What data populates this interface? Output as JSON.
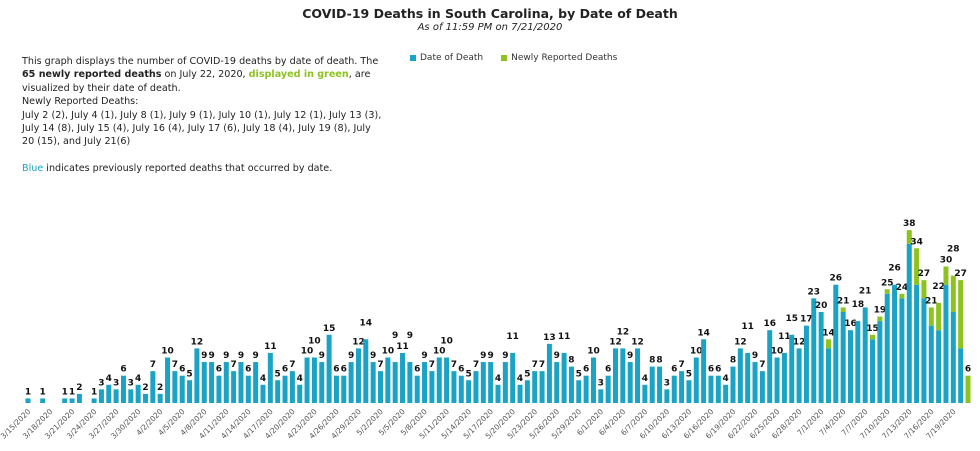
{
  "chart_data": {
    "type": "bar",
    "stacked": true,
    "title": "COVID-19 Deaths in South Carolina, by Date of Death",
    "subtitle": "As of 11:59 PM on 7/21/2020",
    "legend_placement": "top-center",
    "grid": false,
    "tick_every": 3,
    "start_date": "3/15/2020",
    "colors": {
      "date_of_death": "#1aa3c4",
      "newly_reported": "#8dc21f"
    },
    "series": [
      {
        "name": "Date of Death",
        "values": [
          1,
          0,
          1,
          0,
          0,
          1,
          1,
          2,
          0,
          1,
          3,
          4,
          3,
          6,
          3,
          4,
          2,
          7,
          2,
          10,
          7,
          6,
          5,
          12,
          9,
          9,
          6,
          9,
          7,
          9,
          6,
          9,
          4,
          11,
          5,
          6,
          7,
          4,
          10,
          10,
          9,
          15,
          6,
          6,
          9,
          12,
          14,
          9,
          7,
          10,
          9,
          11,
          9,
          6,
          9,
          7,
          10,
          10,
          7,
          6,
          5,
          7,
          9,
          9,
          4,
          9,
          11,
          4,
          5,
          7,
          7,
          13,
          9,
          11,
          8,
          5,
          6,
          10,
          3,
          6,
          12,
          12,
          9,
          12,
          4,
          8,
          8,
          3,
          6,
          7,
          5,
          10,
          14,
          6,
          6,
          4,
          8,
          12,
          11,
          9,
          7,
          16,
          10,
          11,
          15,
          12,
          17,
          23,
          20,
          12,
          26,
          20,
          16,
          18,
          21,
          14,
          18,
          24,
          26,
          23,
          35,
          26,
          23,
          17,
          16,
          26,
          20,
          12,
          0
        ]
      },
      {
        "name": "Newly Reported Deaths",
        "values": [
          0,
          0,
          0,
          0,
          0,
          0,
          0,
          0,
          0,
          0,
          0,
          0,
          0,
          0,
          0,
          0,
          0,
          0,
          0,
          0,
          0,
          0,
          0,
          0,
          0,
          0,
          0,
          0,
          0,
          0,
          0,
          0,
          0,
          0,
          0,
          0,
          0,
          0,
          0,
          0,
          0,
          0,
          0,
          0,
          0,
          0,
          0,
          0,
          0,
          0,
          0,
          0,
          0,
          0,
          0,
          0,
          0,
          0,
          0,
          0,
          0,
          0,
          0,
          0,
          0,
          0,
          0,
          0,
          0,
          0,
          0,
          0,
          0,
          0,
          0,
          0,
          0,
          0,
          0,
          0,
          0,
          0,
          0,
          0,
          0,
          0,
          0,
          0,
          0,
          0,
          0,
          0,
          0,
          0,
          0,
          0,
          0,
          0,
          0,
          0,
          0,
          0,
          0,
          0,
          0,
          0,
          0,
          0,
          0,
          2,
          0,
          1,
          0,
          0,
          0,
          1,
          1,
          1,
          0,
          1,
          3,
          8,
          4,
          4,
          6,
          4,
          8,
          15,
          6
        ]
      }
    ],
    "ylim": [
      0,
      40
    ]
  },
  "description": {
    "line1": "This graph displays the number of COVID-19 deaths by date of death. The",
    "bold": "65 newly reported deaths",
    "mid": " on July 22, 2020, ",
    "green": "displayed in green",
    "after": ", are visualized by their date of death.",
    "newly_header": "Newly Reported Deaths:",
    "newly_list": "July 2 (2), July 4 (1), July 8 (1), July 9 (1), July 10 (1), July 12 (1), July 13 (3), July 14 (8), July 15 (4), July 16 (4), July 17 (6), July 18 (4), July 19 (8), July 20 (15), and July 21(6)",
    "blue_word": "Blue",
    "blue_rest": " indicates previously reported deaths that occurred by date."
  }
}
